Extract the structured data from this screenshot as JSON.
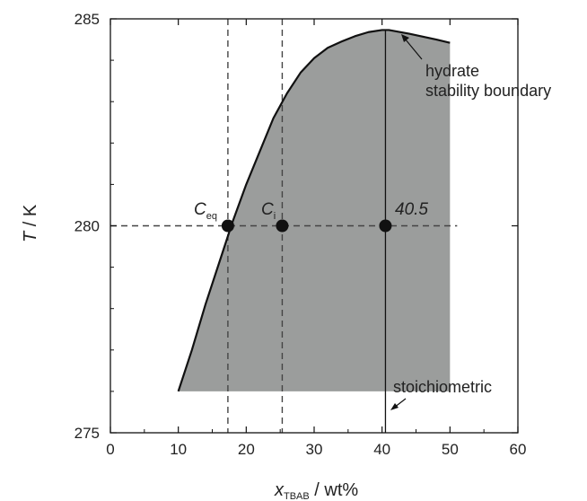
{
  "chart_data": {
    "type": "area",
    "xlabel_main": "x",
    "xlabel_sub": "TBAB",
    "xlabel_rest": " / wt%",
    "ylabel_main": "T",
    "ylabel_rest": " / K",
    "xlim": [
      0,
      60
    ],
    "ylim": [
      275,
      285
    ],
    "xticks": [
      0,
      10,
      20,
      30,
      40,
      50,
      60
    ],
    "yticks": [
      275,
      280,
      285
    ],
    "boundary": {
      "x": [
        10,
        12,
        14,
        16,
        18,
        20,
        22,
        24,
        26,
        28,
        30,
        32,
        34,
        36,
        38,
        40,
        41,
        42,
        44,
        46,
        48,
        50
      ],
      "y": [
        276.0,
        277.0,
        278.1,
        279.1,
        280.1,
        281.0,
        281.8,
        282.6,
        283.2,
        283.7,
        284.05,
        284.3,
        284.45,
        284.58,
        284.68,
        284.73,
        284.73,
        284.7,
        284.64,
        284.57,
        284.5,
        284.42
      ]
    },
    "fill_floor": 276,
    "fill_right": 50,
    "fill_right_top": 283.6,
    "vlines_dashed": [
      17.3,
      25.3
    ],
    "hline_dashed": 280,
    "vline_solid": 40.5,
    "points": [
      {
        "x": 17.3,
        "y": 280,
        "label_main": "C",
        "label_sub": "eq"
      },
      {
        "x": 25.3,
        "y": 280,
        "label_main": "C",
        "label_sub": "i"
      },
      {
        "x": 40.5,
        "y": 280,
        "label_main": "40.5",
        "label_sub": ""
      }
    ],
    "annotations": {
      "boundary_line1": "hydrate",
      "boundary_line2": "stability boundary",
      "stoich": "stoichiometric"
    },
    "colors": {
      "fill": "#9b9d9c",
      "line": "#111111",
      "dashed": "#444444"
    }
  }
}
